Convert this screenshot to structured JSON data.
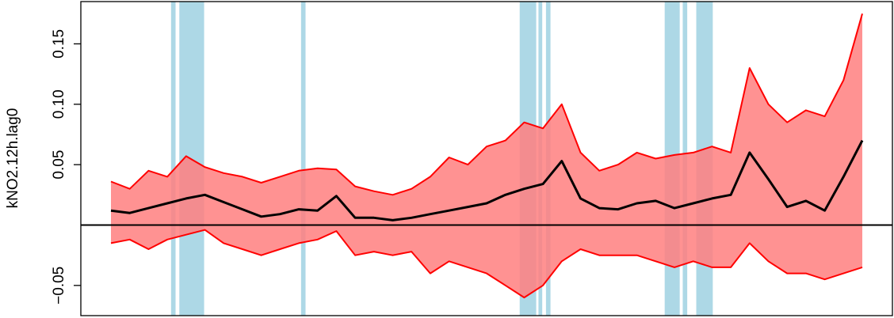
{
  "chart_data": {
    "type": "area",
    "ylabel": "kNO2.12h.lag0",
    "ylim": [
      -0.075,
      0.185
    ],
    "yticks": [
      {
        "value": -0.05,
        "label": "−0.05"
      },
      {
        "value": 0.05,
        "label": "0.05"
      },
      {
        "value": 0.1,
        "label": "0.10"
      },
      {
        "value": 0.15,
        "label": "0.15"
      }
    ],
    "xlim": [
      0,
      100
    ],
    "reference_line": 0,
    "series": [
      {
        "role": "estimate",
        "x": [
          0,
          2.5,
          5,
          7.5,
          10,
          12.5,
          15,
          17.5,
          20,
          22.5,
          25,
          27.5,
          30,
          32.5,
          35,
          37.5,
          40,
          42.5,
          45,
          47.5,
          50,
          52.5,
          55,
          57.5,
          60,
          62.5,
          65,
          67.5,
          70,
          72.5,
          75,
          77.5,
          80,
          82.5,
          85,
          87.5,
          90,
          92.5,
          95,
          97.5,
          100
        ],
        "values": [
          0.012,
          0.01,
          0.014,
          0.018,
          0.022,
          0.025,
          0.019,
          0.013,
          0.007,
          0.009,
          0.013,
          0.012,
          0.024,
          0.006,
          0.006,
          0.004,
          0.006,
          0.009,
          0.012,
          0.015,
          0.018,
          0.025,
          0.03,
          0.034,
          0.053,
          0.022,
          0.014,
          0.013,
          0.018,
          0.02,
          0.014,
          0.018,
          0.022,
          0.025,
          0.06,
          0.038,
          0.015,
          0.02,
          0.012,
          0.04,
          0.07
        ]
      },
      {
        "role": "upper_bound",
        "x": [
          0,
          2.5,
          5,
          7.5,
          10,
          12.5,
          15,
          17.5,
          20,
          22.5,
          25,
          27.5,
          30,
          32.5,
          35,
          37.5,
          40,
          42.5,
          45,
          47.5,
          50,
          52.5,
          55,
          57.5,
          60,
          62.5,
          65,
          67.5,
          70,
          72.5,
          75,
          77.5,
          80,
          82.5,
          85,
          87.5,
          90,
          92.5,
          95,
          97.5,
          100
        ],
        "values": [
          0.036,
          0.03,
          0.045,
          0.04,
          0.057,
          0.048,
          0.043,
          0.04,
          0.035,
          0.04,
          0.045,
          0.047,
          0.046,
          0.032,
          0.028,
          0.025,
          0.03,
          0.04,
          0.056,
          0.05,
          0.065,
          0.07,
          0.085,
          0.08,
          0.1,
          0.06,
          0.045,
          0.05,
          0.06,
          0.055,
          0.058,
          0.06,
          0.065,
          0.06,
          0.13,
          0.1,
          0.085,
          0.095,
          0.09,
          0.12,
          0.175
        ]
      },
      {
        "role": "lower_bound",
        "x": [
          0,
          2.5,
          5,
          7.5,
          10,
          12.5,
          15,
          17.5,
          20,
          22.5,
          25,
          27.5,
          30,
          32.5,
          35,
          37.5,
          40,
          42.5,
          45,
          47.5,
          50,
          52.5,
          55,
          57.5,
          60,
          62.5,
          65,
          67.5,
          70,
          72.5,
          75,
          77.5,
          80,
          82.5,
          85,
          87.5,
          90,
          92.5,
          95,
          97.5,
          100
        ],
        "values": [
          -0.015,
          -0.012,
          -0.02,
          -0.012,
          -0.008,
          -0.004,
          -0.015,
          -0.02,
          -0.025,
          -0.02,
          -0.015,
          -0.012,
          -0.005,
          -0.025,
          -0.022,
          -0.025,
          -0.022,
          -0.04,
          -0.03,
          -0.035,
          -0.04,
          -0.05,
          -0.06,
          -0.05,
          -0.03,
          -0.02,
          -0.025,
          -0.025,
          -0.025,
          -0.03,
          -0.035,
          -0.03,
          -0.035,
          -0.035,
          -0.015,
          -0.03,
          -0.04,
          -0.04,
          -0.045,
          -0.04,
          -0.035
        ]
      }
    ],
    "shaded_periods": [
      [
        8.0,
        8.6
      ],
      [
        9.1,
        12.4
      ],
      [
        25.3,
        25.9
      ],
      [
        54.4,
        56.6
      ],
      [
        56.9,
        57.4
      ],
      [
        57.9,
        58.5
      ],
      [
        73.7,
        75.7
      ],
      [
        76.1,
        76.7
      ],
      [
        77.9,
        80.1
      ]
    ],
    "colors": {
      "band_fill": "#ff7f7f",
      "band_edge": "#ff0000",
      "estimate_line": "#000000",
      "shaded_period": "#add8e6",
      "axis": "#000000"
    }
  }
}
